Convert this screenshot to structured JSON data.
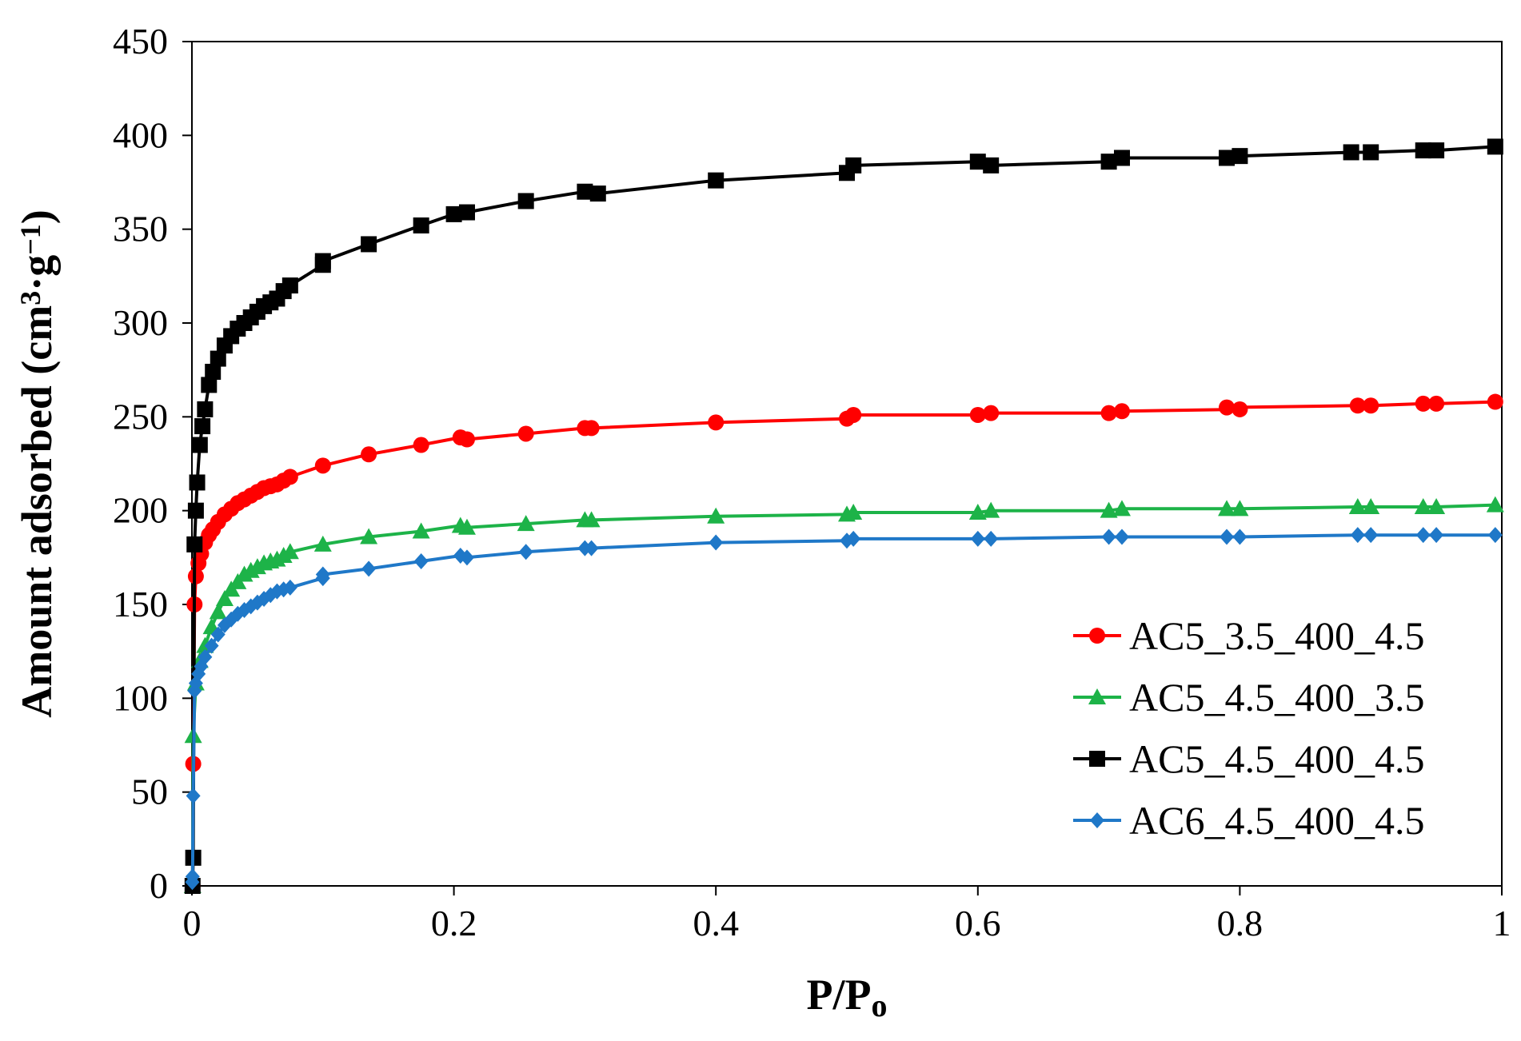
{
  "chart_data": {
    "type": "line",
    "title": "",
    "xlabel": "P/P",
    "xlabel_sub": "o",
    "ylabel": "Amount adsorbed (cm",
    "ylabel_sup1": "3",
    "ylabel_mid": "·g",
    "ylabel_sup2": "−1",
    "ylabel_end": ")",
    "xlim": [
      0,
      1
    ],
    "ylim": [
      0,
      450
    ],
    "xticks": [
      0,
      0.2,
      0.4,
      0.6,
      0.8,
      1
    ],
    "xtick_labels": [
      "0",
      "0.2",
      "0.4",
      "0.6",
      "0.8",
      "1"
    ],
    "yticks": [
      0,
      50,
      100,
      150,
      200,
      250,
      300,
      350,
      400,
      450
    ],
    "ytick_labels": [
      "0",
      "50",
      "100",
      "150",
      "200",
      "250",
      "300",
      "350",
      "400",
      "450"
    ],
    "grid": false,
    "legend_position": "lower-right",
    "series": [
      {
        "name": "AC5_3.5_400_4.5",
        "color": "#ff0000",
        "marker": "circle",
        "points": [
          [
            0.0005,
            0
          ],
          [
            0.001,
            65
          ],
          [
            0.002,
            150
          ],
          [
            0.003,
            165
          ],
          [
            0.005,
            172
          ],
          [
            0.007,
            177
          ],
          [
            0.01,
            183
          ],
          [
            0.013,
            187
          ],
          [
            0.016,
            190
          ],
          [
            0.02,
            194
          ],
          [
            0.025,
            198
          ],
          [
            0.03,
            201
          ],
          [
            0.035,
            204
          ],
          [
            0.04,
            206
          ],
          [
            0.045,
            208
          ],
          [
            0.05,
            210
          ],
          [
            0.055,
            212
          ],
          [
            0.06,
            213
          ],
          [
            0.065,
            214
          ],
          [
            0.07,
            216
          ],
          [
            0.075,
            218
          ],
          [
            0.1,
            224
          ],
          [
            0.135,
            230
          ],
          [
            0.175,
            235
          ],
          [
            0.205,
            239
          ],
          [
            0.21,
            238
          ],
          [
            0.255,
            241
          ],
          [
            0.3,
            244
          ],
          [
            0.305,
            244
          ],
          [
            0.4,
            247
          ],
          [
            0.5,
            249
          ],
          [
            0.505,
            251
          ],
          [
            0.6,
            251
          ],
          [
            0.61,
            252
          ],
          [
            0.7,
            252
          ],
          [
            0.71,
            253
          ],
          [
            0.8,
            254
          ],
          [
            0.79,
            255
          ],
          [
            0.89,
            256
          ],
          [
            0.9,
            256
          ],
          [
            0.94,
            257
          ],
          [
            0.95,
            257
          ],
          [
            0.995,
            258
          ]
        ]
      },
      {
        "name": "AC5_4.5_400_3.5",
        "color": "#1db348",
        "marker": "triangle",
        "points": [
          [
            0.0005,
            0
          ],
          [
            0.001,
            80
          ],
          [
            0.003,
            108
          ],
          [
            0.006,
            120
          ],
          [
            0.01,
            128
          ],
          [
            0.015,
            138
          ],
          [
            0.02,
            146
          ],
          [
            0.025,
            153
          ],
          [
            0.03,
            158
          ],
          [
            0.035,
            162
          ],
          [
            0.04,
            166
          ],
          [
            0.045,
            168
          ],
          [
            0.05,
            170
          ],
          [
            0.055,
            172
          ],
          [
            0.06,
            173
          ],
          [
            0.065,
            174
          ],
          [
            0.07,
            176
          ],
          [
            0.075,
            178
          ],
          [
            0.1,
            182
          ],
          [
            0.135,
            186
          ],
          [
            0.175,
            189
          ],
          [
            0.205,
            192
          ],
          [
            0.21,
            191
          ],
          [
            0.255,
            193
          ],
          [
            0.3,
            195
          ],
          [
            0.305,
            195
          ],
          [
            0.4,
            197
          ],
          [
            0.5,
            198
          ],
          [
            0.505,
            199
          ],
          [
            0.6,
            199
          ],
          [
            0.61,
            200
          ],
          [
            0.7,
            200
          ],
          [
            0.71,
            201
          ],
          [
            0.79,
            201
          ],
          [
            0.8,
            201
          ],
          [
            0.89,
            202
          ],
          [
            0.9,
            202
          ],
          [
            0.94,
            202
          ],
          [
            0.95,
            202
          ],
          [
            0.995,
            203
          ]
        ]
      },
      {
        "name": "AC5_4.5_400_4.5",
        "color": "#000000",
        "marker": "square",
        "points": [
          [
            0.0005,
            0
          ],
          [
            0.001,
            15
          ],
          [
            0.002,
            182
          ],
          [
            0.003,
            200
          ],
          [
            0.004,
            215
          ],
          [
            0.006,
            235
          ],
          [
            0.008,
            245
          ],
          [
            0.01,
            254
          ],
          [
            0.013,
            267
          ],
          [
            0.016,
            274
          ],
          [
            0.02,
            281
          ],
          [
            0.025,
            288
          ],
          [
            0.03,
            293
          ],
          [
            0.035,
            297
          ],
          [
            0.04,
            300
          ],
          [
            0.045,
            303
          ],
          [
            0.05,
            306
          ],
          [
            0.055,
            309
          ],
          [
            0.06,
            311
          ],
          [
            0.065,
            313
          ],
          [
            0.07,
            317
          ],
          [
            0.075,
            320
          ],
          [
            0.1,
            331
          ],
          [
            0.1,
            333
          ],
          [
            0.135,
            342
          ],
          [
            0.175,
            352
          ],
          [
            0.2,
            358
          ],
          [
            0.21,
            359
          ],
          [
            0.255,
            365
          ],
          [
            0.3,
            370
          ],
          [
            0.31,
            369
          ],
          [
            0.4,
            376
          ],
          [
            0.5,
            380
          ],
          [
            0.505,
            384
          ],
          [
            0.6,
            386
          ],
          [
            0.61,
            384
          ],
          [
            0.7,
            386
          ],
          [
            0.71,
            388
          ],
          [
            0.79,
            388
          ],
          [
            0.8,
            389
          ],
          [
            0.885,
            391
          ],
          [
            0.9,
            391
          ],
          [
            0.94,
            392
          ],
          [
            0.95,
            392
          ],
          [
            0.995,
            394
          ]
        ]
      },
      {
        "name": "AC6_4.5_400_4.5",
        "color": "#1f78c8",
        "marker": "diamond",
        "points": [
          [
            0.0003,
            2
          ],
          [
            0.0005,
            5
          ],
          [
            0.001,
            48
          ],
          [
            0.002,
            104
          ],
          [
            0.003,
            108
          ],
          [
            0.005,
            113
          ],
          [
            0.007,
            117
          ],
          [
            0.01,
            122
          ],
          [
            0.015,
            128
          ],
          [
            0.02,
            134
          ],
          [
            0.025,
            139
          ],
          [
            0.03,
            142
          ],
          [
            0.035,
            145
          ],
          [
            0.04,
            147
          ],
          [
            0.045,
            149
          ],
          [
            0.05,
            151
          ],
          [
            0.055,
            153
          ],
          [
            0.06,
            155
          ],
          [
            0.065,
            157
          ],
          [
            0.07,
            158
          ],
          [
            0.075,
            159
          ],
          [
            0.1,
            164
          ],
          [
            0.1,
            166
          ],
          [
            0.135,
            169
          ],
          [
            0.175,
            173
          ],
          [
            0.205,
            176
          ],
          [
            0.21,
            175
          ],
          [
            0.255,
            178
          ],
          [
            0.3,
            180
          ],
          [
            0.305,
            180
          ],
          [
            0.4,
            183
          ],
          [
            0.5,
            184
          ],
          [
            0.505,
            185
          ],
          [
            0.6,
            185
          ],
          [
            0.61,
            185
          ],
          [
            0.7,
            186
          ],
          [
            0.71,
            186
          ],
          [
            0.79,
            186
          ],
          [
            0.8,
            186
          ],
          [
            0.89,
            187
          ],
          [
            0.9,
            187
          ],
          [
            0.94,
            187
          ],
          [
            0.95,
            187
          ],
          [
            0.995,
            187
          ]
        ]
      }
    ]
  }
}
